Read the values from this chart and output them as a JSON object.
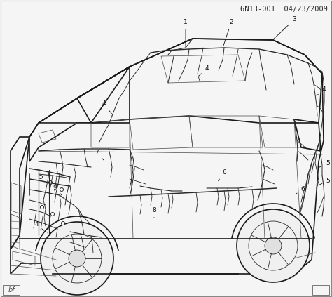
{
  "title": "6N13-001  04/23/2009",
  "title_fontsize": 7.5,
  "title_color": "#2a2a2a",
  "bg_color": "#f5f5f5",
  "border_color": "#888888",
  "watermark_text": "bf",
  "watermark_fontsize": 7,
  "fig_width": 4.74,
  "fig_height": 4.23,
  "dpi": 100,
  "car_color": "#1a1a1a",
  "wire_color": "#2a2a2a",
  "label_color": "#111111",
  "label_fs": 6.5,
  "lw_body": 1.2,
  "lw_wire": 0.75,
  "lw_detail": 0.55
}
